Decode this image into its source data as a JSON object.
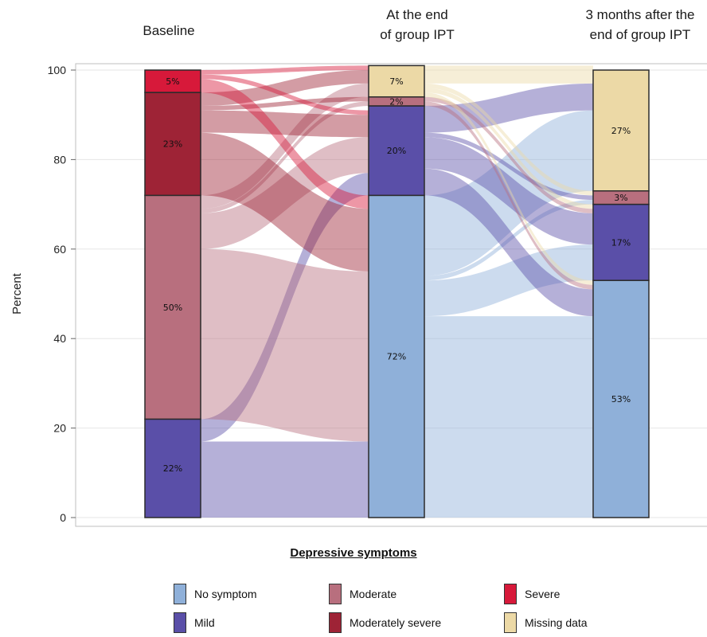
{
  "chart_data": {
    "type": "alluvial",
    "time_points": [
      "Baseline",
      "At the end\nof group IPT",
      "3 months after the\nend of group IPT"
    ],
    "ylabel": "Percent",
    "ylim": [
      0,
      100
    ],
    "yticks": [
      0,
      20,
      40,
      60,
      80,
      100
    ],
    "legend_title": "Depressive symptoms",
    "legend_placement": "bottom",
    "categories": [
      {
        "key": "no_symptom",
        "label": "No symptom",
        "color": "#8fb0d9"
      },
      {
        "key": "mild",
        "label": "Mild",
        "color": "#5a4fa8"
      },
      {
        "key": "moderate",
        "label": "Moderate",
        "color": "#b86f7e"
      },
      {
        "key": "moderately_severe",
        "label": "Moderately severe",
        "color": "#9e2336"
      },
      {
        "key": "severe",
        "label": "Severe",
        "color": "#d7193a"
      },
      {
        "key": "missing",
        "label": "Missing data",
        "color": "#ecd9a6"
      }
    ],
    "stacks": [
      {
        "time": "Baseline",
        "segments": [
          {
            "cat": "mild",
            "value": 22,
            "label": "22%"
          },
          {
            "cat": "moderate",
            "value": 50,
            "label": "50%"
          },
          {
            "cat": "moderately_severe",
            "value": 23,
            "label": "23%"
          },
          {
            "cat": "severe",
            "value": 5,
            "label": "5%"
          }
        ]
      },
      {
        "time": "At the end of group IPT",
        "segments": [
          {
            "cat": "no_symptom",
            "value": 72,
            "label": "72%"
          },
          {
            "cat": "mild",
            "value": 20,
            "label": "20%"
          },
          {
            "cat": "moderate",
            "value": 2,
            "label": "2%"
          },
          {
            "cat": "missing",
            "value": 7,
            "label": "7%"
          }
        ]
      },
      {
        "time": "3 months after the end of group IPT",
        "segments": [
          {
            "cat": "no_symptom",
            "value": 53,
            "label": "53%"
          },
          {
            "cat": "mild",
            "value": 17,
            "label": "17%"
          },
          {
            "cat": "moderate",
            "value": 3,
            "label": "3%"
          },
          {
            "cat": "missing",
            "value": 27,
            "label": "27%"
          }
        ]
      }
    ],
    "flows": [
      {
        "from_stage": 0,
        "to_stage": 1,
        "source": "mild",
        "target": "no_symptom",
        "value": 17
      },
      {
        "from_stage": 0,
        "to_stage": 1,
        "source": "mild",
        "target": "mild",
        "value": 5
      },
      {
        "from_stage": 0,
        "to_stage": 1,
        "source": "moderate",
        "target": "no_symptom",
        "value": 38
      },
      {
        "from_stage": 0,
        "to_stage": 1,
        "source": "moderate",
        "target": "mild",
        "value": 8
      },
      {
        "from_stage": 0,
        "to_stage": 1,
        "source": "moderate",
        "target": "moderate",
        "value": 1
      },
      {
        "from_stage": 0,
        "to_stage": 1,
        "source": "moderate",
        "target": "missing",
        "value": 3
      },
      {
        "from_stage": 0,
        "to_stage": 1,
        "source": "moderately_severe",
        "target": "no_symptom",
        "value": 14
      },
      {
        "from_stage": 0,
        "to_stage": 1,
        "source": "moderately_severe",
        "target": "mild",
        "value": 5
      },
      {
        "from_stage": 0,
        "to_stage": 1,
        "source": "moderately_severe",
        "target": "moderate",
        "value": 1
      },
      {
        "from_stage": 0,
        "to_stage": 1,
        "source": "moderately_severe",
        "target": "missing",
        "value": 3
      },
      {
        "from_stage": 0,
        "to_stage": 1,
        "source": "severe",
        "target": "no_symptom",
        "value": 3
      },
      {
        "from_stage": 0,
        "to_stage": 1,
        "source": "severe",
        "target": "mild",
        "value": 1
      },
      {
        "from_stage": 0,
        "to_stage": 1,
        "source": "severe",
        "target": "missing",
        "value": 1
      },
      {
        "from_stage": 1,
        "to_stage": 2,
        "source": "no_symptom",
        "target": "no_symptom",
        "value": 45
      },
      {
        "from_stage": 1,
        "to_stage": 2,
        "source": "no_symptom",
        "target": "mild",
        "value": 8
      },
      {
        "from_stage": 1,
        "to_stage": 2,
        "source": "no_symptom",
        "target": "moderate",
        "value": 1
      },
      {
        "from_stage": 1,
        "to_stage": 2,
        "source": "no_symptom",
        "target": "missing",
        "value": 18
      },
      {
        "from_stage": 1,
        "to_stage": 2,
        "source": "mild",
        "target": "no_symptom",
        "value": 6
      },
      {
        "from_stage": 1,
        "to_stage": 2,
        "source": "mild",
        "target": "mild",
        "value": 7
      },
      {
        "from_stage": 1,
        "to_stage": 2,
        "source": "mild",
        "target": "moderate",
        "value": 1
      },
      {
        "from_stage": 1,
        "to_stage": 2,
        "source": "mild",
        "target": "missing",
        "value": 6
      },
      {
        "from_stage": 1,
        "to_stage": 2,
        "source": "moderate",
        "target": "no_symptom",
        "value": 1
      },
      {
        "from_stage": 1,
        "to_stage": 2,
        "source": "moderate",
        "target": "mild",
        "value": 1
      },
      {
        "from_stage": 1,
        "to_stage": 2,
        "source": "missing",
        "target": "no_symptom",
        "value": 1
      },
      {
        "from_stage": 1,
        "to_stage": 2,
        "source": "missing",
        "target": "mild",
        "value": 1
      },
      {
        "from_stage": 1,
        "to_stage": 2,
        "source": "missing",
        "target": "moderate",
        "value": 1
      },
      {
        "from_stage": 1,
        "to_stage": 2,
        "source": "missing",
        "target": "missing",
        "value": 4
      }
    ]
  }
}
